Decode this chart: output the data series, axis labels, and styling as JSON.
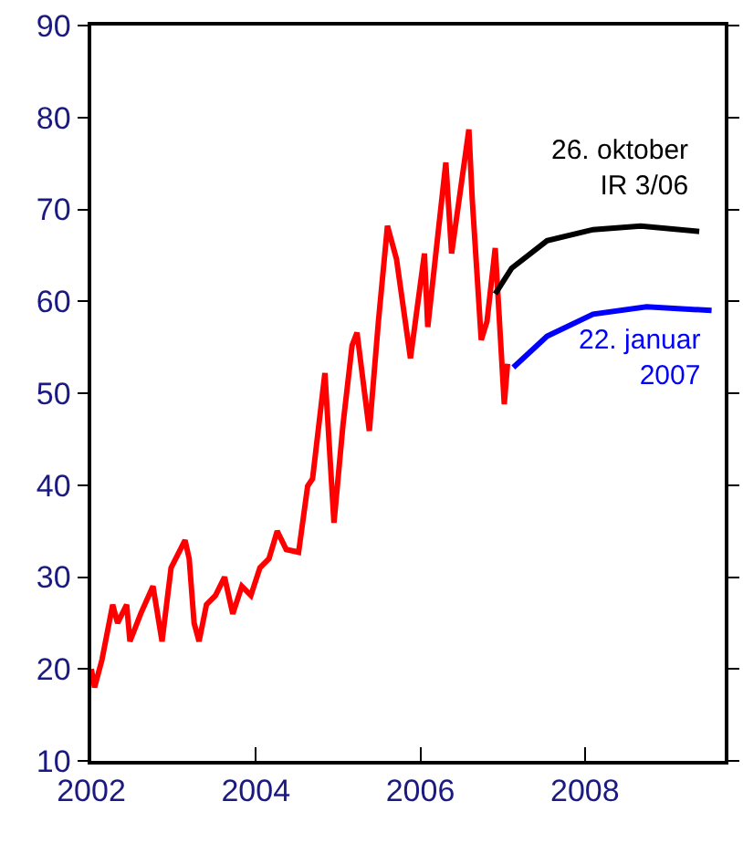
{
  "chart_data": {
    "type": "line",
    "xlim": [
      2002,
      2009.7
    ],
    "xticks": [
      2002,
      2004,
      2006,
      2008
    ],
    "ylim": [
      10,
      90
    ],
    "yticks": [
      10,
      20,
      30,
      40,
      50,
      60,
      70,
      80,
      90
    ],
    "legend": false,
    "marker": "none",
    "line_style": "solid",
    "series": [
      {
        "color": "#ff0000",
        "x": [
          2002.0,
          2002.04,
          2002.13,
          2002.26,
          2002.32,
          2002.43,
          2002.47,
          2002.6,
          2002.75,
          2002.86,
          2002.97,
          2003.14,
          2003.19,
          2003.25,
          2003.31,
          2003.4,
          2003.51,
          2003.62,
          2003.72,
          2003.83,
          2003.94,
          2004.05,
          2004.16,
          2004.26,
          2004.37,
          2004.52,
          2004.63,
          2004.69,
          2004.84,
          2004.95,
          2005.06,
          2005.17,
          2005.23,
          2005.38,
          2005.49,
          2005.6,
          2005.71,
          2005.88,
          2006.05,
          2006.09,
          2006.31,
          2006.38,
          2006.59,
          2006.63,
          2006.74,
          2006.81,
          2006.91,
          2007.02,
          2007.06
        ],
        "values": [
          20,
          18,
          21,
          27,
          25,
          27,
          23,
          26,
          29,
          23,
          31,
          34,
          32,
          25,
          23,
          27,
          28,
          30,
          26,
          29,
          28,
          31,
          32,
          35,
          33,
          32.7,
          39.9,
          40.7,
          52.2,
          35.9,
          46.6,
          55.2,
          56.6,
          45.9,
          57.8,
          68.2,
          64.6,
          53.8,
          65.2,
          57.2,
          75.1,
          65.2,
          78.7,
          71.2,
          55.8,
          57.8,
          65.8,
          48.8,
          53.2
        ]
      },
      {
        "name": "26. oktober\nIR 3/06",
        "color": "#000000",
        "x": [
          2006.91,
          2007.11,
          2007.54,
          2008.1,
          2008.68,
          2009.39
        ],
        "values": [
          60.8,
          63.6,
          66.6,
          67.8,
          68.2,
          67.6
        ]
      },
      {
        "name": "22. januar\n2007",
        "color": "#0000ff",
        "x": [
          2007.13,
          2007.54,
          2008.1,
          2008.75,
          2009.54
        ],
        "values": [
          52.8,
          56.2,
          58.6,
          59.4,
          59.0
        ]
      }
    ]
  }
}
